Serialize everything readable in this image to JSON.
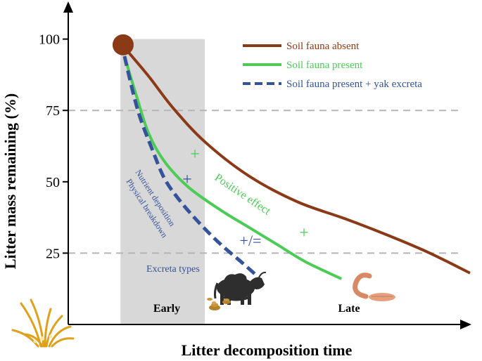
{
  "chart_data": {
    "type": "line",
    "ylabel": "Litter mass remaining (%)",
    "xlabel": "Litter decomposition time",
    "yticks": [
      100,
      75,
      50,
      25
    ],
    "ylim": [
      0,
      110
    ],
    "xlim": [
      0,
      1
    ],
    "gridlines_y": [
      75,
      25
    ],
    "shaded_region": {
      "x": [
        0.13,
        0.34
      ],
      "color": "#d8d8d8"
    },
    "start_point": {
      "x": 0.14,
      "y": 97,
      "color": "#8b3a17"
    },
    "series": [
      {
        "name": "Soil fauna absent",
        "color": "#8b3a17",
        "dash": false,
        "x": [
          0.14,
          0.2,
          0.26,
          0.34,
          0.45,
          0.57,
          0.69,
          0.8,
          0.9,
          1.0
        ],
        "y": [
          97,
          87,
          76,
          64,
          52,
          43,
          37,
          31,
          25,
          18
        ]
      },
      {
        "name": "Soil fauna present",
        "color": "#4ccc57",
        "dash": false,
        "x": [
          0.14,
          0.17,
          0.2,
          0.24,
          0.3,
          0.38,
          0.45,
          0.52,
          0.59,
          0.68
        ],
        "y": [
          94,
          80,
          67,
          57,
          48,
          40,
          34,
          28,
          22,
          16
        ]
      },
      {
        "name": "Soil fauna present + yak excreta",
        "color": "#34539a",
        "dash": true,
        "x": [
          0.14,
          0.16,
          0.18,
          0.21,
          0.24,
          0.28,
          0.33,
          0.38,
          0.43,
          0.47
        ],
        "y": [
          94,
          82,
          72,
          61,
          51,
          43,
          35,
          28,
          22,
          17
        ]
      }
    ],
    "legend_position": "top-right",
    "annotations": {
      "early": "Early",
      "late": "Late",
      "positive_effect": "Positive effect",
      "nutrient_deposition": "Nutrient deposition",
      "physical_breakdown": "Physical breakdown",
      "excreta_types": "Excreta types",
      "plus_green_upper": "+",
      "plus_green_lower": "+",
      "plus_blue": "+",
      "plus_equal": "+/="
    }
  }
}
